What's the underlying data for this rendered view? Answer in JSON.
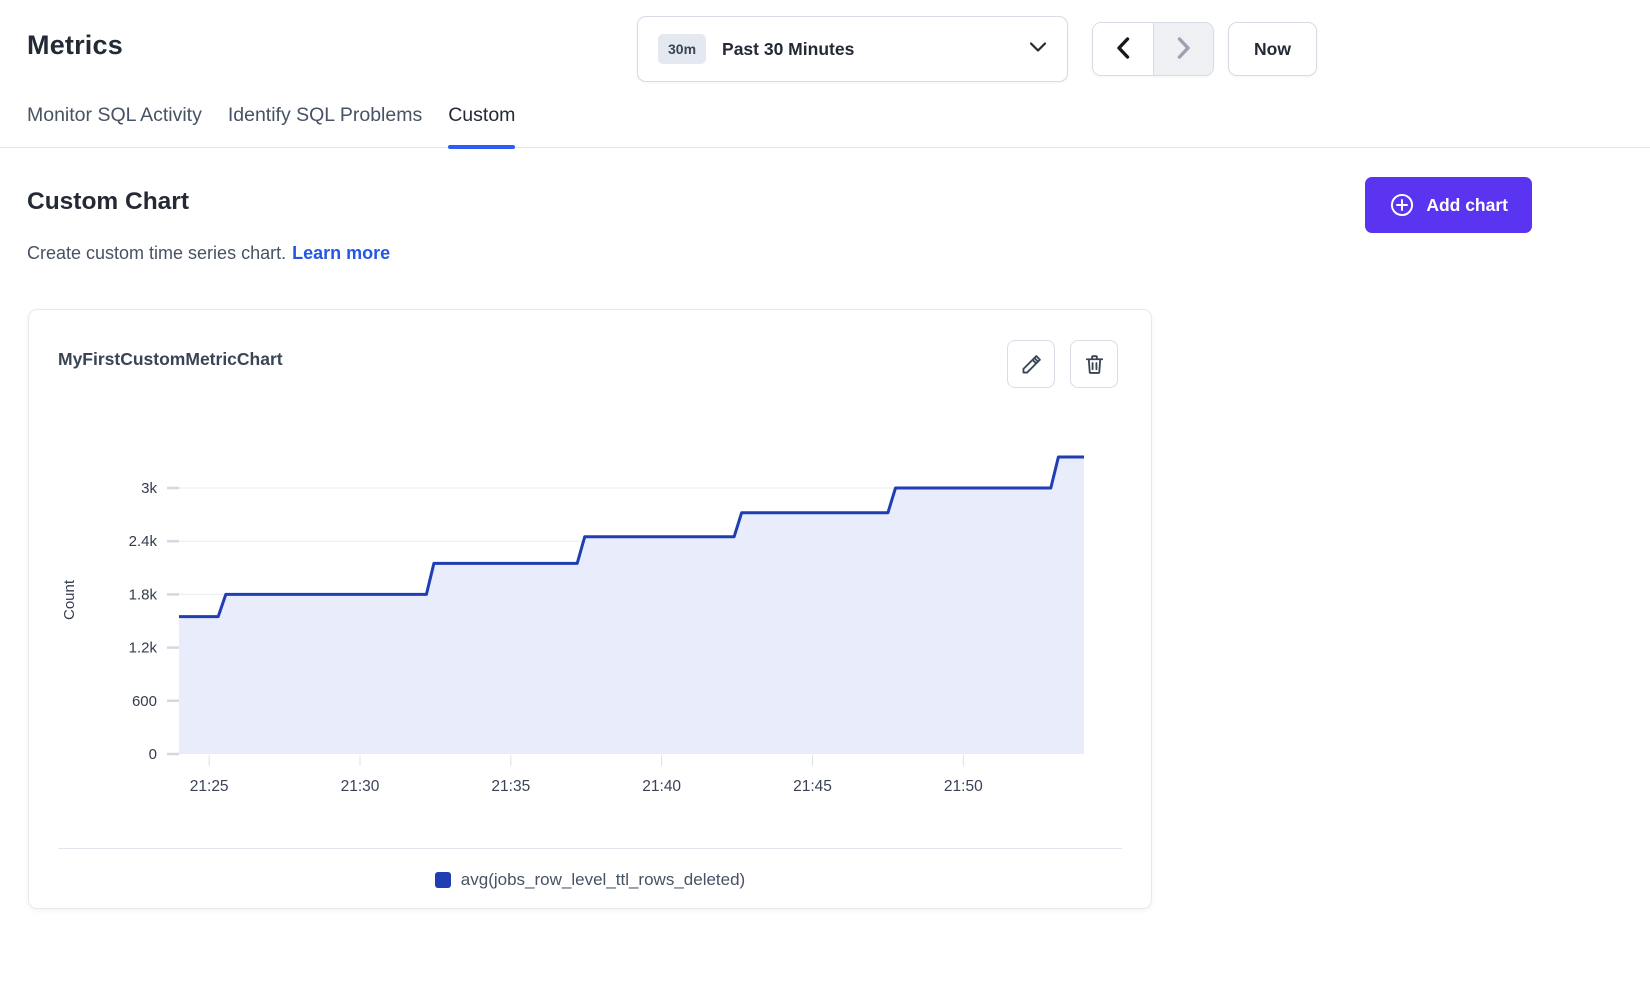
{
  "header": {
    "title": "Metrics",
    "time_range": {
      "badge": "30m",
      "label": "Past 30 Minutes"
    },
    "now_label": "Now"
  },
  "tabs": [
    {
      "label": "Monitor SQL Activity",
      "active": false
    },
    {
      "label": "Identify SQL Problems",
      "active": false
    },
    {
      "label": "Custom",
      "active": true
    }
  ],
  "section": {
    "title": "Custom Chart",
    "description": "Create custom time series chart.",
    "learn_more_label": "Learn more",
    "add_chart_label": "Add chart"
  },
  "card": {
    "title": "MyFirstCustomMetricChart"
  },
  "colors": {
    "accent_purple": "#5b34f1",
    "link_blue": "#2457e4",
    "tab_underline": "#2b5ef5",
    "line_blue": "#1f3eb4",
    "area_fill": "#e9edfb"
  },
  "chart_data": {
    "type": "area",
    "interpolation": "step",
    "title": "MyFirstCustomMetricChart",
    "xlabel": "",
    "ylabel": "Count",
    "grid": true,
    "legend_position": "bottom",
    "ylim": [
      0,
      3600
    ],
    "x_window": {
      "start": "21:24",
      "end": "21:54",
      "duration_minutes": 30
    },
    "x_ticks": [
      {
        "label": "21:25",
        "minutes_from_start": 1
      },
      {
        "label": "21:30",
        "minutes_from_start": 6
      },
      {
        "label": "21:35",
        "minutes_from_start": 11
      },
      {
        "label": "21:40",
        "minutes_from_start": 16
      },
      {
        "label": "21:45",
        "minutes_from_start": 21
      },
      {
        "label": "21:50",
        "minutes_from_start": 26
      }
    ],
    "y_ticks": [
      {
        "label": "0",
        "value": 0
      },
      {
        "label": "600",
        "value": 600
      },
      {
        "label": "1.2k",
        "value": 1200
      },
      {
        "label": "1.8k",
        "value": 1800
      },
      {
        "label": "2.4k",
        "value": 2400
      },
      {
        "label": "3k",
        "value": 3000
      }
    ],
    "series": [
      {
        "name": "avg(jobs_row_level_ttl_rows_deleted)",
        "color": "#1f3eb4",
        "fill_color": "#e9edfb",
        "points": [
          {
            "minutes_from_start": 0.0,
            "value": 1550
          },
          {
            "minutes_from_start": 1.3,
            "value": 1550
          },
          {
            "minutes_from_start": 1.55,
            "value": 1800
          },
          {
            "minutes_from_start": 8.2,
            "value": 1800
          },
          {
            "minutes_from_start": 8.45,
            "value": 2150
          },
          {
            "minutes_from_start": 13.2,
            "value": 2150
          },
          {
            "minutes_from_start": 13.45,
            "value": 2450
          },
          {
            "minutes_from_start": 18.4,
            "value": 2450
          },
          {
            "minutes_from_start": 18.65,
            "value": 2720
          },
          {
            "minutes_from_start": 23.5,
            "value": 2720
          },
          {
            "minutes_from_start": 23.75,
            "value": 3000
          },
          {
            "minutes_from_start": 28.9,
            "value": 3000
          },
          {
            "minutes_from_start": 29.15,
            "value": 3350
          },
          {
            "minutes_from_start": 30.0,
            "value": 3350
          }
        ]
      }
    ]
  }
}
